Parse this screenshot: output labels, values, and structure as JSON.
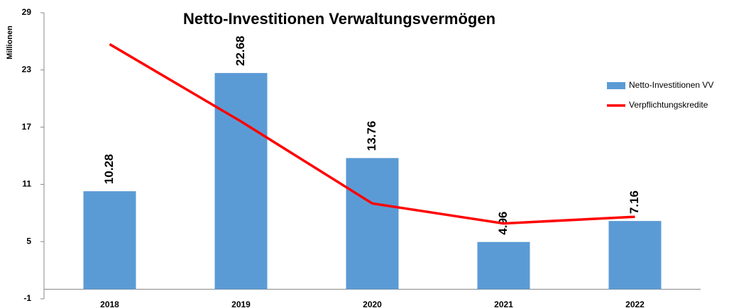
{
  "chart_data": {
    "type": "bar",
    "title": "Netto-Investitionen Verwaltungsvermögen",
    "y_label": "Millionen",
    "categories": [
      "2018",
      "2019",
      "2020",
      "2021",
      "2022"
    ],
    "series": [
      {
        "name": "Netto-Investitionen VV",
        "type": "bar",
        "color": "#5b9bd5",
        "values": [
          10.28,
          22.68,
          13.76,
          4.96,
          7.16
        ]
      },
      {
        "name": "Verpflichtungskredite",
        "type": "line",
        "color": "#ff0000",
        "values": [
          25.7,
          17.6,
          9.0,
          6.9,
          7.6
        ]
      }
    ],
    "ylim": [
      -1,
      29
    ],
    "yticks": [
      -1,
      5,
      11,
      17,
      23,
      29
    ],
    "legend": "right"
  }
}
